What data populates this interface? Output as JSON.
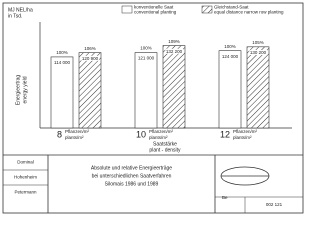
{
  "chart_data": {
    "type": "bar",
    "y_label": "MJ NEL/ha",
    "y_unit": "in Tsd.",
    "y_title": "Energieertrag",
    "y_title_en": "energy yield",
    "x_title": "Saatstärke",
    "x_title_en": "plant - density",
    "categories": [
      "8",
      "10",
      "12"
    ],
    "category_unit": "Pflanzen/m²",
    "category_unit_en": "plants/m²",
    "ylim": [
      0,
      170000
    ],
    "series": [
      {
        "name": "konventionelle Saat",
        "name_en": "conventional planting",
        "color": "#ffffff",
        "values": [
          114000,
          121000,
          124000
        ],
        "value_labels": [
          "114 000",
          "121 000",
          "124 000"
        ],
        "percent_labels": [
          "100%",
          "100%",
          "100%"
        ]
      },
      {
        "name": "Gleichstand-Saat",
        "name_en": "equal distance narrow row planting",
        "color": "hatch",
        "values": [
          120900,
          132200,
          130200
        ],
        "value_labels": [
          "120 900",
          "132 200",
          "130 200"
        ],
        "percent_labels": [
          "106%",
          "109%",
          "105%"
        ]
      }
    ]
  },
  "title_block": {
    "left": [
      "Dominal",
      "Hohenheim",
      "Petermann"
    ],
    "center": [
      "Absolute und relative Energieerträge",
      "bei unterschiedlichen Saatverfahren",
      "Silomais 1986 und 1989"
    ],
    "code": "Be",
    "number": "002 121"
  }
}
